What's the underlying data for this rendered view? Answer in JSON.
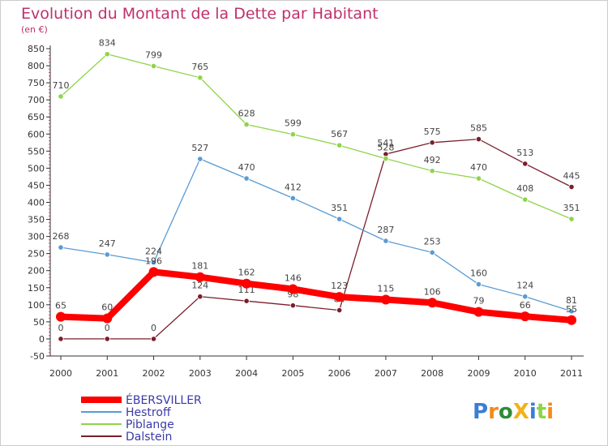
{
  "chart_data": {
    "type": "line",
    "title": "Evolution du Montant de la Dette par Habitant",
    "subtitle": "(en €)",
    "xlabel": "",
    "ylabel": "",
    "x": [
      "2000",
      "2001",
      "2002",
      "2003",
      "2004",
      "2005",
      "2006",
      "2007",
      "2008",
      "2009",
      "2010",
      "2011"
    ],
    "ylim": [
      -50,
      850
    ],
    "yticks": [
      -50,
      0,
      50,
      100,
      150,
      200,
      250,
      300,
      350,
      400,
      450,
      500,
      550,
      600,
      650,
      700,
      750,
      800,
      850
    ],
    "grid": false,
    "legend_position": "bottom-left",
    "series": [
      {
        "name": "ÉBERSVILLER",
        "color": "#ff0000",
        "emphasis": true,
        "values": [
          65,
          60,
          196,
          181,
          162,
          146,
          123,
          115,
          106,
          79,
          66,
          55
        ],
        "labels": [
          "65",
          "60",
          "196",
          "181",
          "162",
          "146",
          "123",
          "115",
          "106",
          "79",
          "66",
          "55"
        ]
      },
      {
        "name": "Hestroff",
        "color": "#5a9bd4",
        "values": [
          268,
          247,
          224,
          527,
          470,
          412,
          351,
          287,
          253,
          160,
          124,
          81
        ],
        "labels": [
          "268",
          "247",
          "224",
          "527",
          "470",
          "412",
          "351",
          "287",
          "253",
          "160",
          "124",
          "81"
        ]
      },
      {
        "name": "Piblange",
        "color": "#8ed44a",
        "values": [
          710,
          834,
          799,
          765,
          628,
          599,
          567,
          528,
          492,
          470,
          408,
          351
        ],
        "labels": [
          "710",
          "834",
          "799",
          "765",
          "628",
          "599",
          "567",
          "528",
          "492",
          "470",
          "408",
          "351"
        ]
      },
      {
        "name": "Dalstein",
        "color": "#7a1f2b",
        "values": [
          0,
          0,
          0,
          124,
          111,
          98,
          84,
          541,
          575,
          585,
          513,
          445
        ],
        "labels": [
          "0",
          "0",
          "0",
          "124",
          "111",
          "98",
          "84",
          "541",
          "575",
          "585",
          "513",
          "445"
        ]
      }
    ]
  },
  "logo": {
    "text": "ProXiti"
  }
}
